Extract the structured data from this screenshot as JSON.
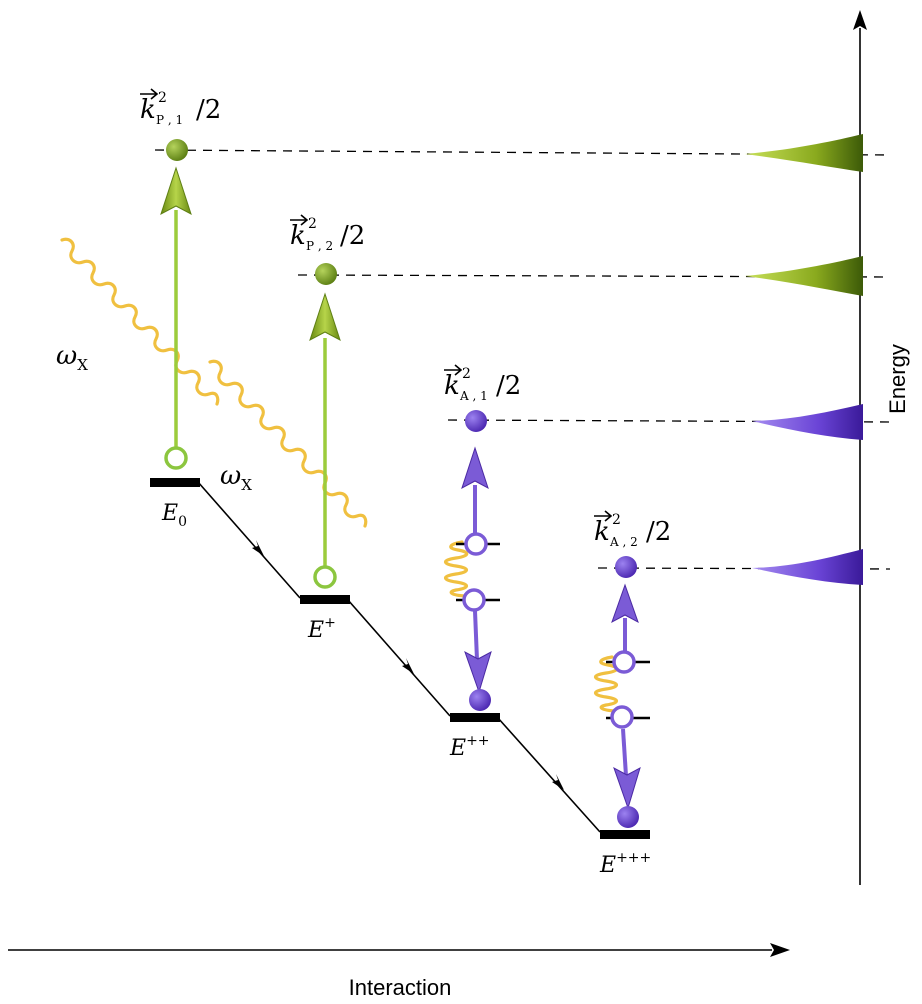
{
  "axes": {
    "horizontal_label": "Interaction",
    "vertical_label": "Energy"
  },
  "levels": [
    {
      "id": "E0",
      "base": "E",
      "sub": "0",
      "sup": ""
    },
    {
      "id": "E1",
      "base": "E",
      "sub": "",
      "sup": "+"
    },
    {
      "id": "E2",
      "base": "E",
      "sub": "",
      "sup": "++"
    },
    {
      "id": "E3",
      "base": "E",
      "sub": "",
      "sup": "+++"
    }
  ],
  "photon_label": {
    "base": "ω",
    "sub": "X"
  },
  "peak_labels": [
    {
      "id": "kp1",
      "k": "k",
      "sup": "2",
      "sub": "P , 1",
      "tail": "/2"
    },
    {
      "id": "kp2",
      "k": "k",
      "sup": "2",
      "sub": "P , 2",
      "tail": "/2"
    },
    {
      "id": "ka1",
      "k": "k",
      "sup": "2",
      "sub": "A , 1",
      "tail": "/2"
    },
    {
      "id": "ka2",
      "k": "k",
      "sup": "2",
      "sub": "A , 2",
      "tail": "/2"
    }
  ],
  "colors": {
    "photoelectron": "#8cc63f",
    "photoelectron_dark": "#5e7f14",
    "auger": "#7b5bd6",
    "auger_dark": "#4b2aa3",
    "photon": "#f0c040",
    "line": "#000000"
  }
}
